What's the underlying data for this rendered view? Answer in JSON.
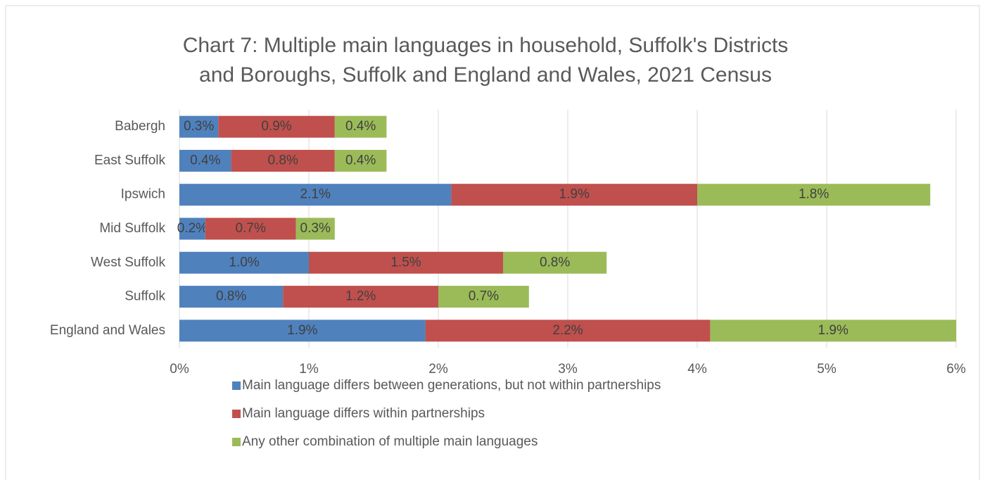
{
  "chart_data": {
    "type": "stacked-bar-horizontal",
    "title": [
      "Chart 7: Multiple main languages in household, Suffolk's Districts",
      "and Boroughs, Suffolk and England and Wales, 2021 Census"
    ],
    "categories": [
      "Babergh",
      "East Suffolk",
      "Ipswich",
      "Mid Suffolk",
      "West Suffolk",
      "Suffolk",
      "England and Wales"
    ],
    "series": [
      {
        "name": "Main language differs between generations, but not within partnerships",
        "color": "#4f81bd",
        "values": [
          0.3,
          0.4,
          2.1,
          0.2,
          1.0,
          0.8,
          1.9
        ],
        "value_labels": [
          "0.3%",
          "0.4%",
          "2.1%",
          "0.2%",
          "1.0%",
          "0.8%",
          "1.9%"
        ]
      },
      {
        "name": "Main language differs within partnerships",
        "color": "#c0504d",
        "values": [
          0.9,
          0.8,
          1.9,
          0.7,
          1.5,
          1.2,
          2.2
        ],
        "value_labels": [
          "0.9%",
          "0.8%",
          "1.9%",
          "0.7%",
          "1.5%",
          "1.2%",
          "2.2%"
        ]
      },
      {
        "name": "Any other combination of multiple main languages",
        "color": "#9bbb59",
        "values": [
          0.4,
          0.4,
          1.8,
          0.3,
          0.8,
          0.7,
          1.9
        ],
        "value_labels": [
          "0.4%",
          "0.4%",
          "1.8%",
          "0.3%",
          "0.8%",
          "0.7%",
          "1.9%"
        ]
      }
    ],
    "xlim": [
      0,
      6
    ],
    "xticks": [
      {
        "value": 0,
        "label": "0%"
      },
      {
        "value": 1,
        "label": "1%"
      },
      {
        "value": 2,
        "label": "2%"
      },
      {
        "value": 3,
        "label": "3%"
      },
      {
        "value": 4,
        "label": "4%"
      },
      {
        "value": 5,
        "label": "5%"
      },
      {
        "value": 6,
        "label": "6%"
      }
    ],
    "grid": true,
    "legend": "bottom"
  }
}
